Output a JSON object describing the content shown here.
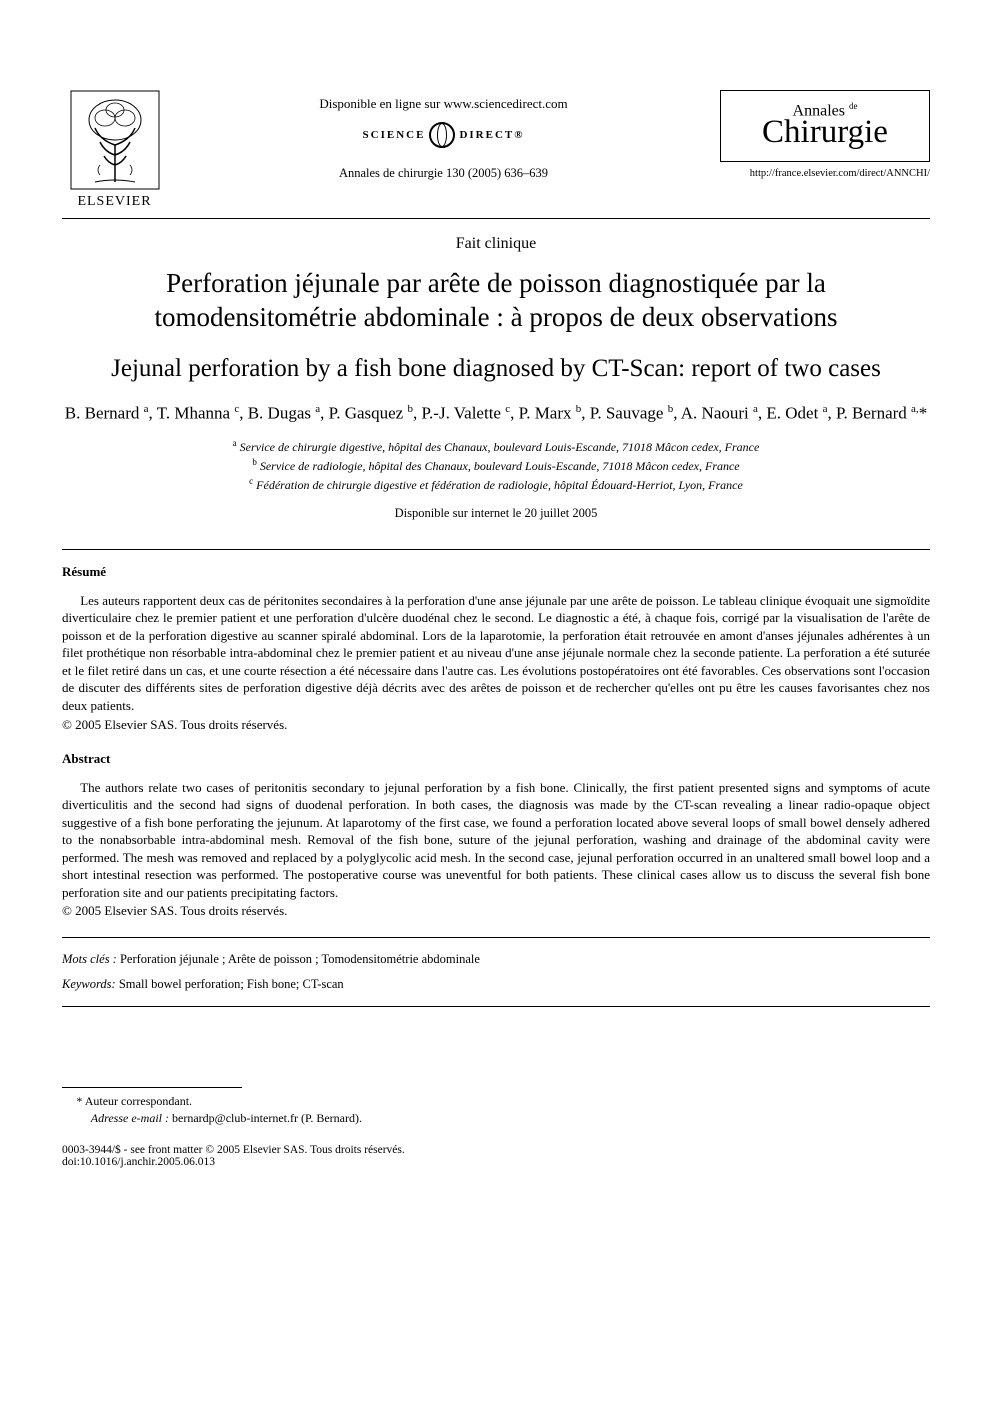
{
  "header": {
    "publisher_name": "ELSEVIER",
    "online_text": "Disponible en ligne sur www.sciencedirect.com",
    "sd_left": "SCIENCE",
    "sd_right": "DIRECT®",
    "citation": "Annales de chirurgie 130 (2005) 636–639",
    "journal_top": "Annales",
    "journal_de": "de",
    "journal_main": "Chirurgie",
    "journal_url": "http://france.elsevier.com/direct/ANNCHI/"
  },
  "article": {
    "type_label": "Fait clinique",
    "title_fr": "Perforation jéjunale par arête de poisson diagnostiquée par la tomodensitométrie abdominale : à propos de deux observations",
    "title_en": "Jejunal perforation by a fish bone diagnosed by CT-Scan: report of two cases",
    "authors_html": "B. Bernard <sup>a</sup>, T. Mhanna <sup>c</sup>, B. Dugas <sup>a</sup>, P. Gasquez <sup>b</sup>, P.-J. Valette <sup>c</sup>, P. Marx <sup>b</sup>, P. Sauvage <sup>b</sup>, A. Naouri <sup>a</sup>, E. Odet <sup>a</sup>, P. Bernard <sup>a,</sup>*",
    "affiliations": {
      "a": "Service de chirurgie digestive, hôpital des Chanaux, boulevard Louis-Escande, 71018 Mâcon cedex, France",
      "b": "Service de radiologie, hôpital des Chanaux, boulevard Louis-Escande, 71018 Mâcon cedex, France",
      "c": "Fédération de chirurgie digestive et fédération de radiologie, hôpital Édouard-Herriot, Lyon, France"
    },
    "online_date": "Disponible sur internet le 20 juillet 2005"
  },
  "resume": {
    "heading": "Résumé",
    "body": "Les auteurs rapportent deux cas de péritonites secondaires à la perforation d'une anse jéjunale par une arête de poisson. Le tableau clinique évoquait une sigmoïdite diverticulaire chez le premier patient et une perforation d'ulcère duodénal chez le second. Le diagnostic a été, à chaque fois, corrigé par la visualisation de l'arête de poisson et de la perforation digestive au scanner spiralé abdominal. Lors de la laparotomie, la perforation était retrouvée en amont d'anses jéjunales adhérentes à un filet prothétique non résorbable intra-abdominal chez le premier patient et au niveau d'une anse jéjunale normale chez la seconde patiente. La perforation a été suturée et le filet retiré dans un cas, et une courte résection a été nécessaire dans l'autre cas. Les évolutions postopératoires ont été favorables. Ces observations sont l'occasion de discuter des différents sites de perforation digestive déjà décrits avec des arêtes de poisson et de rechercher qu'elles ont pu être les causes favorisantes chez nos deux patients.",
    "copyright": "© 2005 Elsevier SAS. Tous droits réservés."
  },
  "abstract": {
    "heading": "Abstract",
    "body": "The authors relate two cases of peritonitis secondary to jejunal perforation by a fish bone. Clinically, the first patient presented signs and symptoms of acute diverticulitis and the second had signs of duodenal perforation. In both cases, the diagnosis was made by the CT-scan revealing a linear radio-opaque object suggestive of a fish bone perforating the jejunum. At laparotomy of the first case, we found a perforation located above several loops of small bowel densely adhered to the nonabsorbable intra-abdominal mesh. Removal of the fish bone, suture of the jejunal perforation, washing and drainage of the abdominal cavity were performed. The mesh was removed and replaced by a polyglycolic acid mesh. In the second case, jejunal perforation occurred in an unaltered small bowel loop and a short intestinal resection was performed. The postoperative course was uneventful for both patients. These clinical cases allow us to discuss the several fish bone perforation site and our patients precipitating factors.",
    "copyright": "© 2005 Elsevier SAS. Tous droits réservés."
  },
  "keywords": {
    "mots_label": "Mots clés :",
    "mots_text": "Perforation jéjunale ; Arête de poisson ; Tomodensitométrie abdominale",
    "kw_label": "Keywords:",
    "kw_text": "Small bowel perforation; Fish bone; CT-scan"
  },
  "footer": {
    "corr_label": "* Auteur correspondant.",
    "email_label": "Adresse e-mail :",
    "email_value": "bernardp@club-internet.fr (P. Bernard).",
    "pub_line": "0003-3944/$ - see front matter © 2005 Elsevier SAS. Tous droits réservés.",
    "doi_line": "doi:10.1016/j.anchir.2005.06.013"
  }
}
